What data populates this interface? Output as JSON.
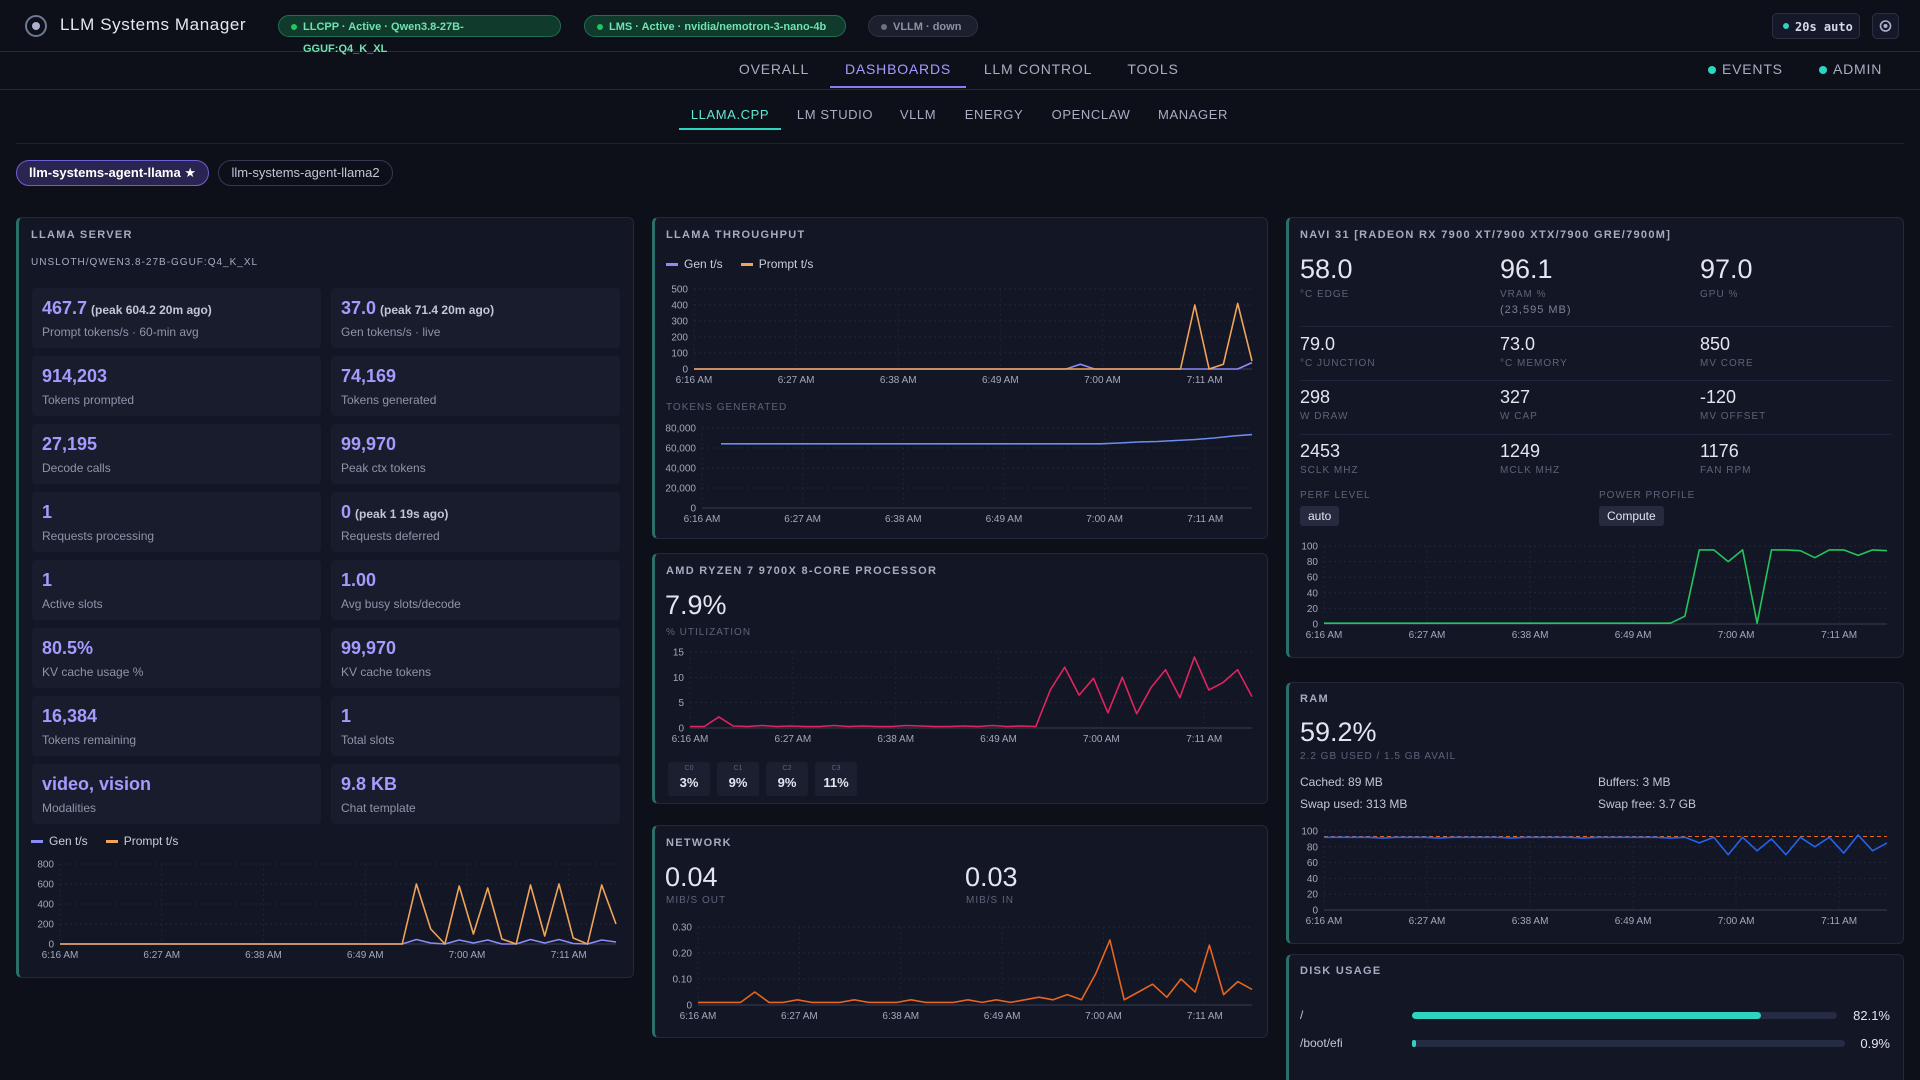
{
  "header": {
    "title": "LLM Systems Manager",
    "badges": [
      {
        "text": "LLCPP · Active · Qwen3.8-27B-GGUF:Q4_K_XL",
        "status": "active"
      },
      {
        "text": "LMS · Active · nvidia/nemotron-3-nano-4b",
        "status": "active"
      },
      {
        "text": "VLLM · down",
        "status": "down"
      }
    ],
    "refresh": "20s auto"
  },
  "nav": {
    "items": [
      "OVERALL",
      "DASHBOARDS",
      "LLM CONTROL",
      "TOOLS"
    ],
    "active": 1,
    "right": [
      "EVENTS",
      "ADMIN"
    ]
  },
  "subnav": {
    "items": [
      "LLAMA.CPP",
      "LM STUDIO",
      "VLLM",
      "ENERGY",
      "OPENCLAW",
      "MANAGER"
    ],
    "active": 0
  },
  "agents": [
    "llm-systems-agent-llama ★",
    "llm-systems-agent-llama2"
  ],
  "time_axis": [
    "6:16 AM",
    "6:27 AM",
    "6:38 AM",
    "6:49 AM",
    "7:00 AM",
    "7:11 AM"
  ],
  "llama_server": {
    "title": "LLAMA SERVER",
    "model": "UNSLOTH/QWEN3.8-27B-GGUF:Q4_K_XL",
    "stats": [
      {
        "value": "467.7",
        "note": "(peak 604.2 20m ago)",
        "label": "Prompt tokens/s · 60-min avg"
      },
      {
        "value": "37.0",
        "note": "(peak 71.4 20m ago)",
        "label": "Gen tokens/s · live"
      },
      {
        "value": "914,203",
        "label": "Tokens prompted"
      },
      {
        "value": "74,169",
        "label": "Tokens generated"
      },
      {
        "value": "27,195",
        "label": "Decode calls"
      },
      {
        "value": "99,970",
        "label": "Peak ctx tokens"
      },
      {
        "value": "1",
        "label": "Requests processing"
      },
      {
        "value": "0",
        "note": "(peak 1 19s ago)",
        "label": "Requests deferred"
      },
      {
        "value": "1",
        "label": "Active slots"
      },
      {
        "value": "1.00",
        "label": "Avg busy slots/decode"
      },
      {
        "value": "80.5%",
        "label": "KV cache usage %"
      },
      {
        "value": "99,970",
        "label": "KV cache tokens"
      },
      {
        "value": "16,384",
        "label": "Tokens remaining"
      },
      {
        "value": "1",
        "label": "Total slots"
      },
      {
        "value": "video, vision",
        "label": "Modalities"
      },
      {
        "value": "9.8 KB",
        "label": "Chat template"
      }
    ],
    "chart": {
      "type": "line",
      "ylim": [
        0,
        800
      ],
      "yticks": [
        0,
        200,
        400,
        600,
        800
      ],
      "series": [
        {
          "name": "Gen t/s",
          "color": "#8b8cf6",
          "values": [
            0,
            0,
            0,
            0,
            0,
            0,
            0,
            0,
            0,
            0,
            0,
            0,
            0,
            0,
            0,
            0,
            0,
            0,
            0,
            0,
            0,
            0,
            0,
            0,
            0,
            45,
            10,
            0,
            40,
            10,
            40,
            0,
            0,
            45,
            10,
            45,
            5,
            0,
            40,
            20
          ]
        },
        {
          "name": "Prompt t/s",
          "color": "#f0a35a",
          "values": [
            0,
            0,
            0,
            0,
            0,
            0,
            0,
            0,
            0,
            0,
            0,
            0,
            0,
            0,
            0,
            0,
            0,
            0,
            0,
            0,
            0,
            0,
            0,
            0,
            0,
            600,
            150,
            0,
            580,
            100,
            560,
            50,
            0,
            590,
            80,
            600,
            60,
            0,
            590,
            200
          ]
        }
      ]
    }
  },
  "throughput": {
    "title": "LLAMA THROUGHPUT",
    "chart": {
      "type": "line",
      "ylim": [
        0,
        500
      ],
      "yticks": [
        0,
        100,
        200,
        300,
        400,
        500
      ],
      "series": [
        {
          "name": "Gen t/s",
          "color": "#8b8cf6",
          "values": [
            0,
            0,
            0,
            0,
            0,
            0,
            0,
            0,
            0,
            0,
            0,
            0,
            0,
            0,
            0,
            0,
            0,
            0,
            0,
            0,
            0,
            0,
            0,
            0,
            0,
            0,
            0,
            30,
            0,
            0,
            0,
            0,
            0,
            0,
            0,
            0,
            0,
            0,
            0,
            40
          ]
        },
        {
          "name": "Prompt t/s",
          "color": "#f0a35a",
          "values": [
            0,
            0,
            0,
            0,
            0,
            0,
            0,
            0,
            0,
            0,
            0,
            0,
            0,
            0,
            0,
            0,
            0,
            0,
            0,
            0,
            0,
            0,
            0,
            0,
            0,
            0,
            0,
            0,
            0,
            0,
            0,
            0,
            0,
            0,
            0,
            400,
            0,
            30,
            410,
            50
          ]
        }
      ]
    },
    "tokens_title": "TOKENS GENERATED",
    "tokens_chart": {
      "type": "line",
      "ylim": [
        0,
        80000
      ],
      "yticks": [
        0,
        {
          "value": 20000,
          "label": "20,000"
        },
        {
          "value": 40000,
          "label": "40,000"
        },
        {
          "value": 60000,
          "label": "60,000"
        },
        {
          "value": 80000,
          "label": "80,000"
        }
      ],
      "series": [
        {
          "color": "#6b8cf0",
          "values": [
            null,
            64200,
            64200,
            64200,
            64200,
            64200,
            64200,
            64200,
            64200,
            64200,
            64200,
            64200,
            64200,
            64200,
            64200,
            64200,
            64200,
            64200,
            64200,
            64200,
            64200,
            64200,
            65000,
            66000,
            66500,
            67500,
            68500,
            70000,
            72000,
            73400
          ]
        }
      ]
    }
  },
  "cpu": {
    "title": "AMD RYZEN 7 9700X 8-CORE PROCESSOR",
    "value": "7.9%",
    "label": "% UTILIZATION",
    "chart": {
      "type": "line",
      "ylim": [
        0,
        15
      ],
      "yticks": [
        0,
        5,
        10,
        15
      ],
      "series": [
        {
          "color": "#e0245e",
          "values": [
            0.3,
            0.3,
            2.2,
            0.4,
            0.3,
            0.5,
            0.3,
            0.4,
            0.3,
            0.3,
            0.5,
            0.3,
            0.4,
            0.3,
            0.3,
            0.5,
            0.4,
            0.3,
            0.3,
            0.4,
            0.3,
            0.5,
            0.3,
            0.4,
            0.3,
            7.5,
            12,
            6.5,
            9.8,
            3,
            10,
            2.8,
            8,
            11.5,
            6,
            14,
            7.5,
            9,
            11.5,
            6.2
          ]
        }
      ]
    },
    "cores": [
      {
        "name": "C0",
        "value": "3%"
      },
      {
        "name": "C1",
        "value": "9%"
      },
      {
        "name": "C2",
        "value": "9%"
      },
      {
        "name": "C3",
        "value": "11%"
      }
    ]
  },
  "network": {
    "title": "NETWORK",
    "out": {
      "value": "0.04",
      "label": "MIB/S OUT"
    },
    "in": {
      "value": "0.03",
      "label": "MIB/S IN"
    },
    "chart": {
      "type": "line",
      "ylim": [
        0,
        0.3
      ],
      "yticks": [
        0,
        {
          "value": 0.1,
          "label": "0.10"
        },
        {
          "value": 0.2,
          "label": "0.20"
        },
        {
          "value": 0.3,
          "label": "0.30"
        }
      ],
      "series": [
        {
          "color": "#e8651e",
          "values": [
            0.01,
            0.01,
            0.01,
            0.01,
            0.05,
            0.01,
            0.01,
            0.02,
            0.01,
            0.01,
            0.01,
            0.02,
            0.01,
            0.01,
            0.01,
            0.02,
            0.01,
            0.01,
            0.01,
            0.02,
            0.01,
            0.02,
            0.01,
            0.02,
            0.03,
            0.02,
            0.04,
            0.02,
            0.12,
            0.25,
            0.02,
            0.05,
            0.08,
            0.03,
            0.1,
            0.05,
            0.23,
            0.04,
            0.09,
            0.06
          ]
        }
      ]
    }
  },
  "gpu": {
    "title": "NAVI 31 [RADEON RX 7900 XT/7900 XTX/7900 GRE/7900M]",
    "stats": [
      {
        "value": "58.0",
        "label": "°C EDGE"
      },
      {
        "value": "96.1",
        "label": "VRAM %",
        "extra": "(23,595 MB)"
      },
      {
        "value": "97.0",
        "label": "GPU %"
      },
      {
        "value": "79.0",
        "label": "°C JUNCTION"
      },
      {
        "value": "73.0",
        "label": "°C MEMORY"
      },
      {
        "value": "850",
        "label": "MV CORE"
      },
      {
        "value": "298",
        "label": "W DRAW"
      },
      {
        "value": "327",
        "label": "W CAP"
      },
      {
        "value": "-120",
        "label": "MV OFFSET"
      },
      {
        "value": "2453",
        "label": "SCLK MHZ"
      },
      {
        "value": "1249",
        "label": "MCLK MHZ"
      },
      {
        "value": "1176",
        "label": "FAN RPM"
      }
    ],
    "perf_label": "PERF LEVEL",
    "perf_value": "auto",
    "power_label": "POWER PROFILE",
    "power_value": "Compute",
    "chart": {
      "type": "line",
      "ylim": [
        0,
        100
      ],
      "yticks": [
        0,
        20,
        40,
        60,
        80,
        100
      ],
      "series": [
        {
          "color": "#22c55e",
          "values": [
            1,
            1,
            1,
            1,
            1,
            1,
            1,
            1,
            1,
            1,
            1,
            1,
            1,
            1,
            1,
            1,
            1,
            1,
            1,
            1,
            1,
            1,
            1,
            1,
            1,
            10,
            95,
            95,
            80,
            95,
            1,
            95,
            95,
            94,
            85,
            95,
            95,
            88,
            95,
            94
          ]
        }
      ]
    }
  },
  "ram": {
    "title": "RAM",
    "value": "59.2%",
    "subtitle": "2.2 GB USED / 1.5 GB AVAIL",
    "details": [
      "Cached: 89 MB",
      "Buffers: 3 MB",
      "Swap used: 313 MB",
      "Swap free: 3.7 GB"
    ],
    "chart": {
      "type": "line",
      "ylim": [
        0,
        100
      ],
      "yticks": [
        0,
        20,
        40,
        60,
        80,
        100
      ],
      "threshold": 93,
      "threshold_color": "#e8651e",
      "series": [
        {
          "color": "#2563eb",
          "values": [
            92,
            92,
            92,
            92,
            91,
            92,
            92,
            92,
            91,
            92,
            92,
            92,
            92,
            91,
            92,
            92,
            92,
            92,
            91,
            92,
            92,
            92,
            92,
            92,
            91,
            92,
            85,
            92,
            70,
            92,
            75,
            90,
            70,
            92,
            80,
            92,
            72,
            95,
            75,
            85
          ]
        }
      ]
    }
  },
  "disk": {
    "title": "DISK USAGE",
    "rows": [
      {
        "mount": "/",
        "value": 82.1,
        "label": "82.1%",
        "color": "#2dd4bf"
      },
      {
        "mount": "/boot/efi",
        "value": 0.9,
        "label": "0.9%",
        "color": "#2dd4bf"
      }
    ]
  }
}
